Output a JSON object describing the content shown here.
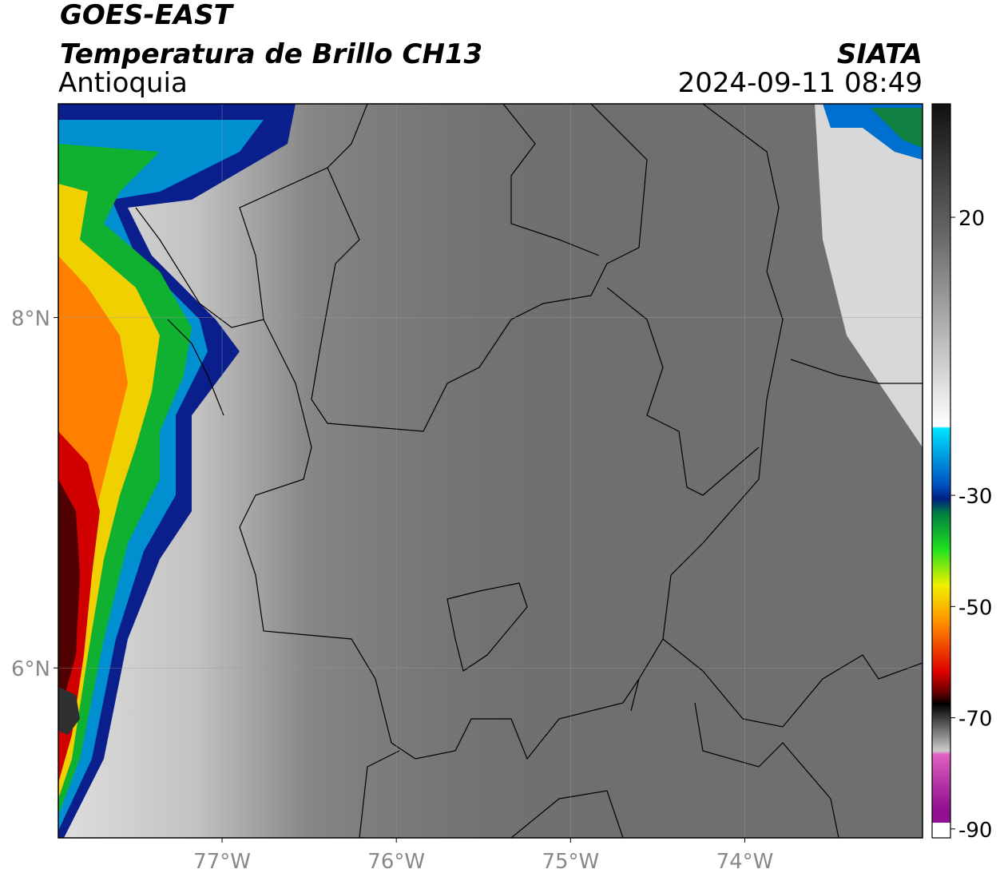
{
  "header": {
    "satellite": "GOES-EAST",
    "product": "Temperatura de Brillo CH13",
    "region": "Antioquia",
    "source": "SIATA",
    "datetime": "2024-09-11 08:49"
  },
  "map": {
    "xlim": [
      -77.94,
      -72.98
    ],
    "ylim": [
      5.03,
      9.22
    ],
    "xticks": [
      {
        "value": -77,
        "label": "77°W"
      },
      {
        "value": -76,
        "label": "76°W"
      },
      {
        "value": -75,
        "label": "75°W"
      },
      {
        "value": -74,
        "label": "74°W"
      }
    ],
    "yticks": [
      {
        "value": 8,
        "label": "8°N"
      },
      {
        "value": 6,
        "label": "6°N"
      }
    ],
    "grid": true
  },
  "colorbar": {
    "range": [
      -91.6,
      40.4
    ],
    "ticks": [
      20,
      -30,
      -50,
      -70,
      -90
    ]
  }
}
